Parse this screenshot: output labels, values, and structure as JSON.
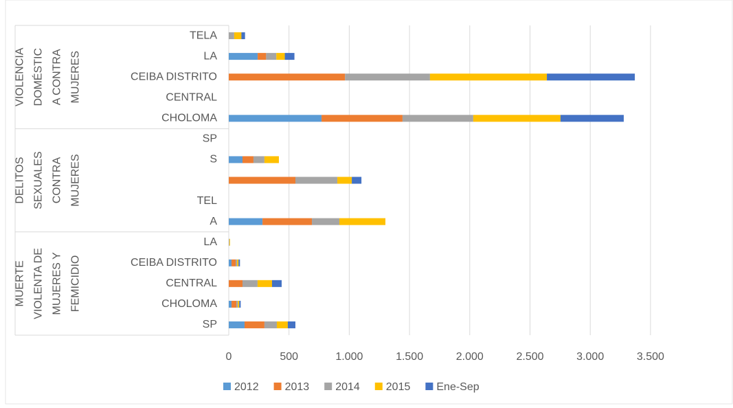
{
  "chart_data": {
    "type": "stacked-bar-horizontal",
    "categories": [
      "TELA",
      "LA",
      "CEIBA DISTRITO",
      "CENTRAL",
      "CHOLOMA",
      "SP",
      "S",
      null,
      "TEL",
      "A",
      "LA",
      "CEIBA DISTRITO",
      "CENTRAL",
      "CHOLOMA",
      "SP"
    ],
    "groups": [
      {
        "lines": [
          "VIOLENCIA",
          "DOMÉSTIC",
          "A CONTRA",
          "MUJERES"
        ]
      },
      {
        "lines": [
          "DELITOS",
          "SEXUALES",
          "CONTRA",
          "MUJERES"
        ]
      },
      {
        "lines": [
          "MUERTE",
          "VIOLENTA DE",
          "MUJERES Y",
          "FEMICIDIO"
        ]
      }
    ],
    "series": [
      {
        "name": "2012",
        "color": "#5b9bd5",
        "values": [
          0,
          240,
          0,
          0,
          770,
          0,
          114,
          0,
          0,
          280,
          0,
          23,
          0,
          23,
          131
        ]
      },
      {
        "name": "2013",
        "color": "#ed7d31",
        "values": [
          0,
          70,
          965,
          0,
          672,
          0,
          91,
          553,
          0,
          410,
          0,
          34,
          114,
          40,
          165
        ]
      },
      {
        "name": "2014",
        "color": "#a5a5a5",
        "values": [
          45,
          85,
          705,
          0,
          587,
          0,
          91,
          348,
          0,
          228,
          5,
          12,
          125,
          12,
          103
        ]
      },
      {
        "name": "2015",
        "color": "#ffc000",
        "values": [
          60,
          70,
          970,
          0,
          724,
          0,
          120,
          120,
          0,
          382,
          5,
          12,
          120,
          12,
          91
        ]
      },
      {
        "name": "Ene-Sep",
        "color": "#4472c4",
        "values": [
          30,
          80,
          730,
          0,
          525,
          0,
          0,
          80,
          0,
          0,
          0,
          12,
          80,
          12,
          63
        ]
      }
    ],
    "xlim": [
      0,
      4000
    ],
    "xticks": [
      0,
      500,
      {
        "value": 1000,
        "label": "1.000"
      },
      {
        "value": 1500,
        "label": "1.500"
      },
      {
        "value": 2000,
        "label": "2.000"
      },
      {
        "value": 2500,
        "label": "2.500"
      },
      {
        "value": 3000,
        "label": "3.000"
      },
      {
        "value": 3500,
        "label": "3.500"
      }
    ],
    "grid": true,
    "legend": "bottom"
  }
}
